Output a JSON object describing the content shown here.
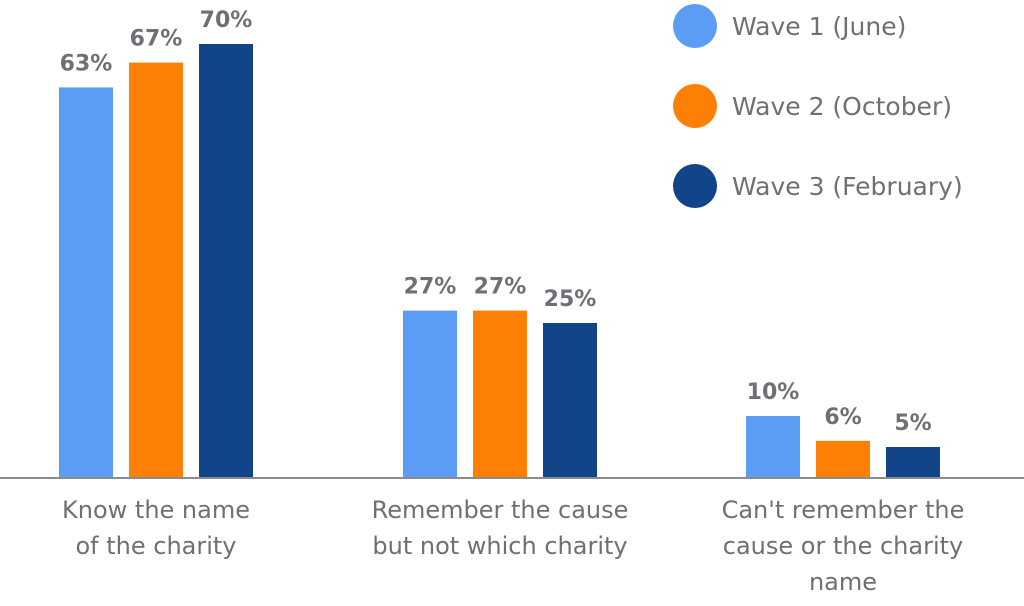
{
  "chart_data": {
    "type": "bar",
    "categories": [
      [
        "Know the name",
        "of the charity"
      ],
      [
        "Remember the cause",
        "but not which charity"
      ],
      [
        "Can't remember the",
        "cause or the charity",
        "name"
      ]
    ],
    "series": [
      {
        "name": "Wave 1 (June)",
        "color": "#5b9cf4",
        "values": [
          63,
          27,
          10
        ]
      },
      {
        "name": "Wave 2 (October)",
        "color": "#fd8005",
        "values": [
          67,
          27,
          6
        ]
      },
      {
        "name": "Wave 3 (February)",
        "color": "#12448a",
        "values": [
          70,
          25,
          5
        ]
      }
    ],
    "value_suffix": "%",
    "ylim": [
      0,
      75
    ],
    "legend": "top-right",
    "grid": false
  }
}
